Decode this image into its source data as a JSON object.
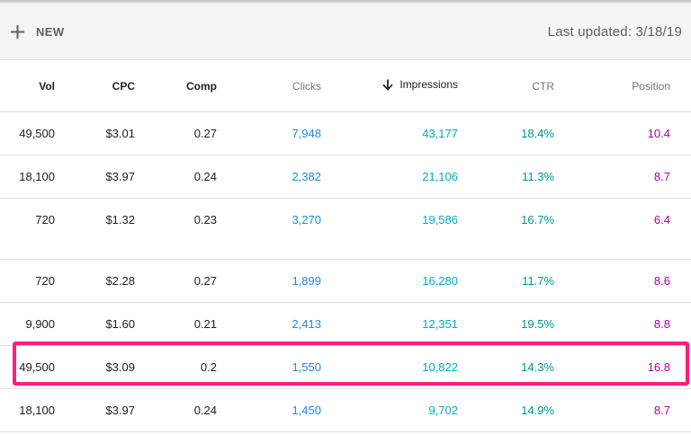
{
  "toolbar": {
    "new_label": "NEW",
    "last_updated": "Last updated: 3/18/19"
  },
  "table": {
    "columns": [
      {
        "key": "vol",
        "label": "Vol"
      },
      {
        "key": "cpc",
        "label": "CPC"
      },
      {
        "key": "comp",
        "label": "Comp"
      },
      {
        "key": "clicks",
        "label": "Clicks"
      },
      {
        "key": "impressions",
        "label": "Impressions",
        "sorted": "descending"
      },
      {
        "key": "ctr",
        "label": "CTR"
      },
      {
        "key": "position",
        "label": "Position"
      }
    ],
    "rows": [
      {
        "vol": "49,500",
        "cpc": "$3.01",
        "comp": "0.27",
        "clicks": "7,948",
        "impressions": "43,177",
        "ctr": "18.4%",
        "position": "10.4"
      },
      {
        "vol": "18,100",
        "cpc": "$3.97",
        "comp": "0.24",
        "clicks": "2,382",
        "impressions": "21,106",
        "ctr": "11.3%",
        "position": "8.7"
      },
      {
        "vol": "720",
        "cpc": "$1.32",
        "comp": "0.23",
        "clicks": "3,270",
        "impressions": "19,586",
        "ctr": "16.7%",
        "position": "6.4"
      },
      {
        "vol": "720",
        "cpc": "$2.28",
        "comp": "0.27",
        "clicks": "1,899",
        "impressions": "16,280",
        "ctr": "11.7%",
        "position": "8.6"
      },
      {
        "vol": "9,900",
        "cpc": "$1.60",
        "comp": "0.21",
        "clicks": "2,413",
        "impressions": "12,351",
        "ctr": "19.5%",
        "position": "8.8"
      },
      {
        "vol": "49,500",
        "cpc": "$3.09",
        "comp": "0.2",
        "clicks": "1,550",
        "impressions": "10,822",
        "ctr": "14.3%",
        "position": "16.8"
      },
      {
        "vol": "18,100",
        "cpc": "$3.97",
        "comp": "0.24",
        "clicks": "1,450",
        "impressions": "9,702",
        "ctr": "14.9%",
        "position": "8.7"
      }
    ]
  },
  "colors": {
    "clicks": "#1e88e5",
    "impressions": "#00acc1",
    "ctr": "#009688",
    "position": "#ab00a8",
    "highlight": "#ff1f78"
  },
  "icons": {
    "new": "plus-icon",
    "sort": "arrow-down-icon"
  }
}
